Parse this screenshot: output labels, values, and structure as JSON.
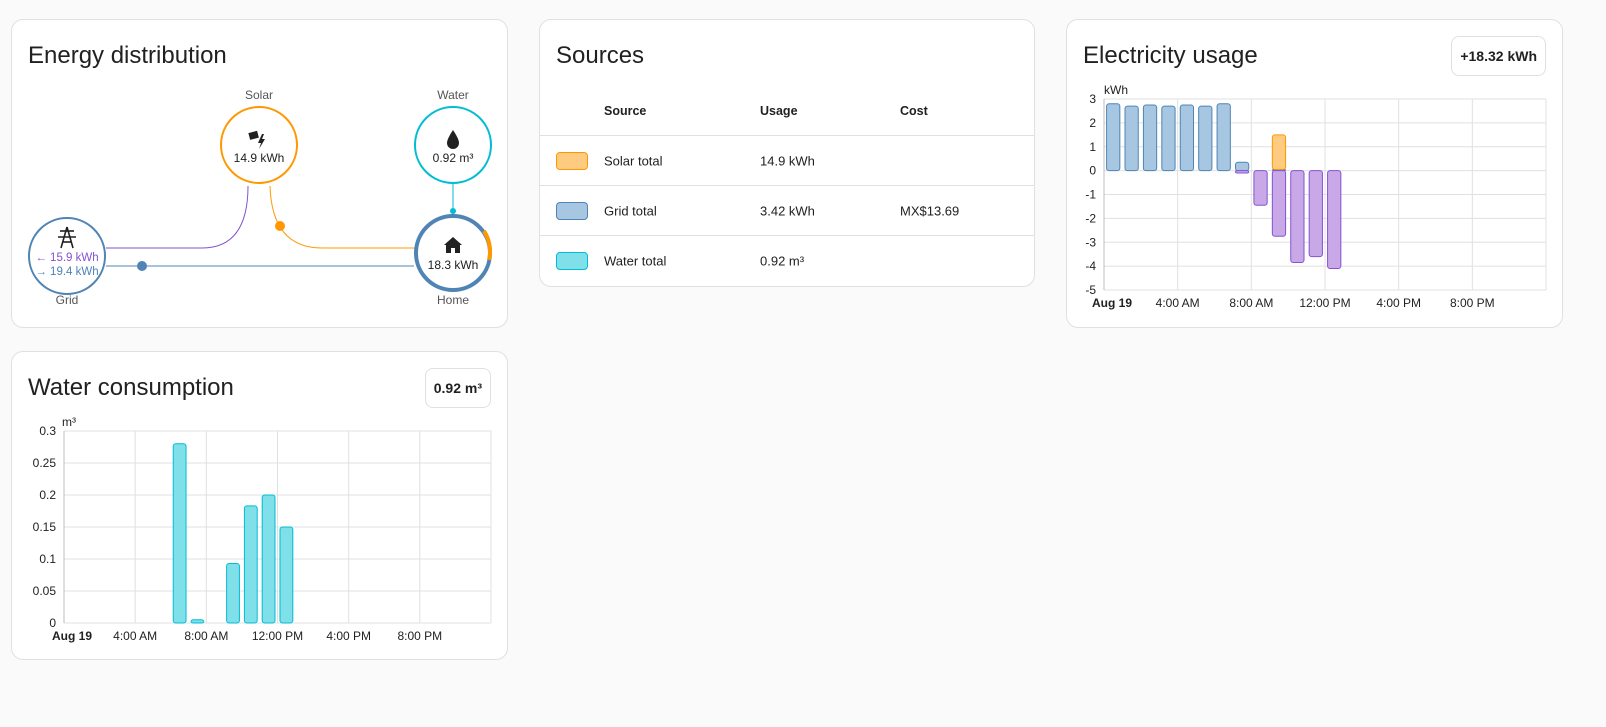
{
  "distribution": {
    "title": "Energy distribution",
    "solar": {
      "label": "Solar",
      "value": "14.9 kWh"
    },
    "water": {
      "label": "Water",
      "value": "0.92 m³"
    },
    "grid": {
      "label": "Grid",
      "consumed": "← 15.9 kWh",
      "returned": "→ 19.4 kWh"
    },
    "home": {
      "label": "Home",
      "value": "18.3 kWh"
    }
  },
  "sources": {
    "title": "Sources",
    "headers": {
      "source": "Source",
      "usage": "Usage",
      "cost": "Cost"
    },
    "rows": [
      {
        "name": "Solar total",
        "usage": "14.9 kWh",
        "cost": "",
        "fill": "#ffcb80",
        "border": "#ff9800"
      },
      {
        "name": "Grid total",
        "usage": "3.42 kWh",
        "cost": "MX$13.69",
        "fill": "#a7c6e1",
        "border": "#4f84b5"
      },
      {
        "name": "Water total",
        "usage": "0.92 m³",
        "cost": "",
        "fill": "#7fe0ea",
        "border": "#00bcd4"
      }
    ]
  },
  "electricity": {
    "title": "Electricity usage",
    "badge": "+18.32 kWh",
    "chart_data": {
      "type": "bar",
      "ylabel": "kWh",
      "ylim": [
        -5,
        3
      ],
      "yticks": [
        "3",
        "2",
        "1",
        "0",
        "-1",
        "-2",
        "-3",
        "-4",
        "-5"
      ],
      "xticks": [
        "Aug 19",
        "4:00 AM",
        "8:00 AM",
        "12:00 PM",
        "4:00 PM",
        "8:00 PM"
      ],
      "hours": [
        0,
        1,
        2,
        3,
        4,
        5,
        6,
        7,
        8,
        9,
        10,
        11,
        12
      ],
      "series": [
        {
          "key": "grid",
          "values": [
            2.8,
            2.7,
            2.75,
            2.7,
            2.75,
            2.7,
            2.8,
            0.35,
            0,
            0.05,
            0,
            0,
            0
          ],
          "color": "#4f84b5",
          "fill": "#a7c6e1"
        },
        {
          "key": "solar",
          "values": [
            0,
            0,
            0,
            0,
            0,
            0,
            0,
            0,
            0,
            1.45,
            0,
            0,
            0
          ],
          "color": "#ff9800",
          "fill": "#ffcb80"
        },
        {
          "key": "return",
          "values": [
            0,
            0,
            0,
            0,
            0,
            0,
            0,
            -0.1,
            -1.45,
            -2.75,
            -3.85,
            -3.6,
            -4.1
          ],
          "color": "#8353d1",
          "fill": "#c8a8e6"
        }
      ]
    }
  },
  "water_chart": {
    "title": "Water consumption",
    "badge": "0.92 m³",
    "chart_data": {
      "type": "bar",
      "ylabel": "m³",
      "ylim": [
        0,
        0.3
      ],
      "yticks": [
        "0.3",
        "0.25",
        "0.2",
        "0.15",
        "0.1",
        "0.05",
        "0"
      ],
      "xticks": [
        "Aug 19",
        "4:00 AM",
        "8:00 AM",
        "12:00 PM",
        "4:00 PM",
        "8:00 PM"
      ],
      "hours": [
        6,
        7,
        9,
        10,
        11,
        12
      ],
      "values": [
        0.28,
        0.005,
        0.093,
        0.183,
        0.2,
        0.15
      ],
      "color": "#00bcd4",
      "fill": "#7fe0ea"
    }
  }
}
